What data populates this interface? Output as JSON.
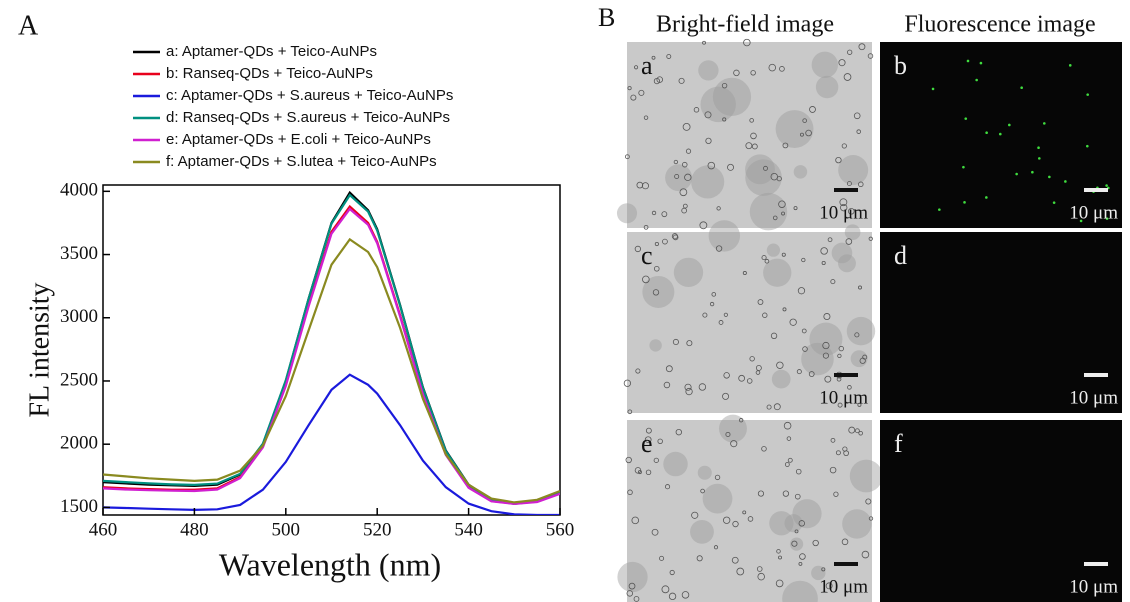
{
  "chart_data": {
    "type": "line",
    "panel_label": "A",
    "x_label": "Wavelength (nm)",
    "y_label": "FL intensity",
    "x": [
      460,
      465,
      470,
      475,
      480,
      485,
      490,
      495,
      500,
      505,
      510,
      514,
      518,
      520,
      525,
      530,
      535,
      540,
      545,
      550,
      555,
      560
    ],
    "series": [
      {
        "name": "a: Aptamer-QDs + Teico-AuNPs",
        "color": "#000000",
        "values": [
          1700,
          1690,
          1680,
          1675,
          1670,
          1680,
          1760,
          2000,
          2500,
          3150,
          3750,
          3990,
          3850,
          3700,
          3100,
          2450,
          1950,
          1680,
          1560,
          1530,
          1550,
          1620
        ]
      },
      {
        "name": "b: Ranseq-QDs + Teico-AuNPs",
        "color": "#e8001c",
        "values": [
          1660,
          1650,
          1645,
          1640,
          1640,
          1650,
          1740,
          1980,
          2470,
          3100,
          3680,
          3880,
          3750,
          3600,
          3020,
          2400,
          1920,
          1660,
          1550,
          1530,
          1545,
          1610
        ]
      },
      {
        "name": "c: Aptamer-QDs + S.aureus + Teico-AuNPs",
        "color": "#1a1adc",
        "values": [
          1500,
          1495,
          1490,
          1485,
          1480,
          1485,
          1520,
          1640,
          1860,
          2150,
          2430,
          2550,
          2470,
          2400,
          2150,
          1870,
          1660,
          1530,
          1470,
          1445,
          1440,
          1440
        ]
      },
      {
        "name": "d: Ranseq-QDs + S.aureus + Teico-AuNPs",
        "color": "#009080",
        "values": [
          1710,
          1700,
          1690,
          1682,
          1678,
          1688,
          1765,
          2005,
          2505,
          3150,
          3745,
          3970,
          3840,
          3690,
          3095,
          2445,
          1945,
          1678,
          1558,
          1528,
          1548,
          1618
        ]
      },
      {
        "name": "e: Aptamer-QDs + E.coli + Teico-AuNPs",
        "color": "#d020d0",
        "values": [
          1650,
          1642,
          1636,
          1632,
          1630,
          1642,
          1732,
          1975,
          2460,
          3090,
          3665,
          3860,
          3735,
          3590,
          3010,
          2395,
          1915,
          1655,
          1548,
          1528,
          1543,
          1608
        ]
      },
      {
        "name": "f: Aptamer-QDs + S.lutea + Teico-AuNPs",
        "color": "#8a8a20",
        "values": [
          1760,
          1745,
          1730,
          1720,
          1710,
          1720,
          1790,
          1990,
          2380,
          2900,
          3420,
          3620,
          3520,
          3400,
          2920,
          2360,
          1920,
          1680,
          1570,
          1540,
          1560,
          1630
        ]
      }
    ],
    "xlim": [
      460,
      560
    ],
    "xticks": [
      460,
      480,
      500,
      520,
      540,
      560
    ],
    "ylim": [
      1440,
      4050
    ],
    "yticks": [
      1500,
      2000,
      2500,
      3000,
      3500,
      4000
    ]
  },
  "panel_b": {
    "label": "B",
    "headers": [
      "Bright-field image",
      "Fluorescence image"
    ],
    "panels": [
      {
        "letter": "a",
        "scale": "10 μm"
      },
      {
        "letter": "b",
        "scale": "10 μm"
      },
      {
        "letter": "c",
        "scale": "10 μm"
      },
      {
        "letter": "d",
        "scale": "10 μm"
      },
      {
        "letter": "e",
        "scale": "10 μm"
      },
      {
        "letter": "f",
        "scale": "10 μm"
      }
    ]
  }
}
